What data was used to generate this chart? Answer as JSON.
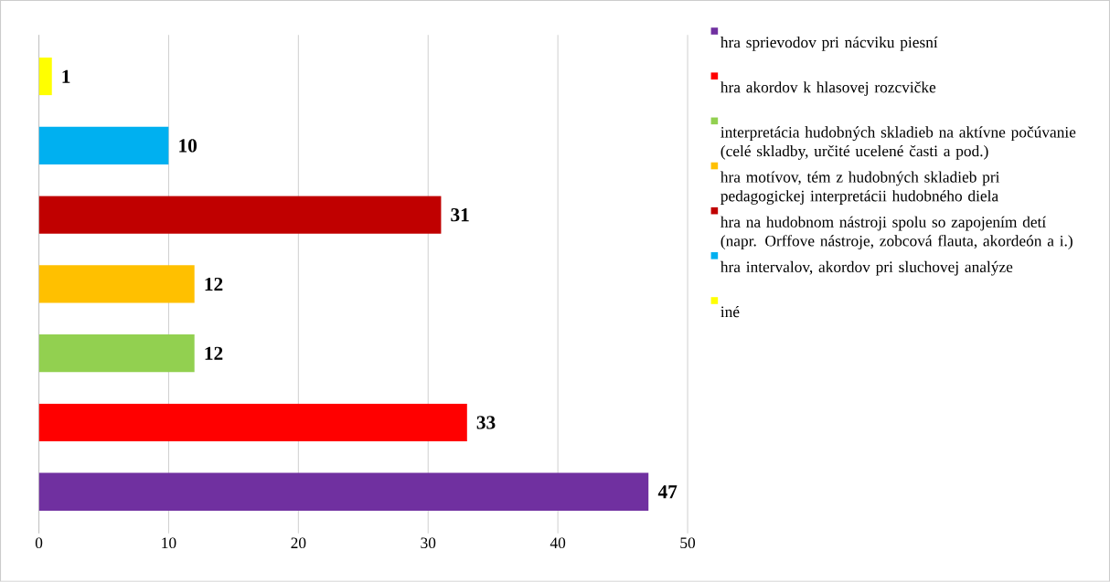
{
  "chart_data": {
    "type": "bar",
    "orientation": "horizontal",
    "categories": [
      null,
      null,
      null,
      null,
      null,
      null,
      null
    ],
    "series": [
      {
        "name": "hra sprievodov pri nácviku piesní",
        "color": "#7030a0",
        "values": [
          null,
          null,
          null,
          null,
          null,
          null,
          47
        ]
      },
      {
        "name": "hra akordov k hlasovej rozcvičke",
        "color": "#ff0000",
        "values": [
          null,
          null,
          null,
          null,
          null,
          33,
          null
        ]
      },
      {
        "name": "interpretácia hudobných skladieb na aktívne počúvanie (celé skladby, určité ucelené časti a pod.)",
        "color": "#92d050",
        "values": [
          null,
          null,
          null,
          null,
          12,
          null,
          null
        ]
      },
      {
        "name": "hra motívov, tém z hudobných skladieb pri pedagogickej interpretácii hudobného diela",
        "color": "#ffc000",
        "values": [
          null,
          null,
          null,
          12,
          null,
          null,
          null
        ]
      },
      {
        "name": "hra na hudobnom nástroji spolu so zapojením detí (napr. Orffove nástroje, zobcová flauta, akordeón a i.)",
        "color": "#c00000",
        "values": [
          null,
          null,
          31,
          null,
          null,
          null,
          null
        ]
      },
      {
        "name": "hra intervalov, akordov pri sluchovej analýze",
        "color": "#00b0f0",
        "values": [
          null,
          10,
          null,
          null,
          null,
          null,
          null
        ]
      },
      {
        "name": "iné",
        "color": "#ffff00",
        "values": [
          1,
          null,
          null,
          null,
          null,
          null,
          null
        ]
      }
    ],
    "xlim": [
      0,
      50
    ],
    "xticks": [
      0,
      10,
      20,
      30,
      40,
      50
    ],
    "grid": "x",
    "legend": "right",
    "data_labels": true,
    "tick_labels": "x"
  }
}
